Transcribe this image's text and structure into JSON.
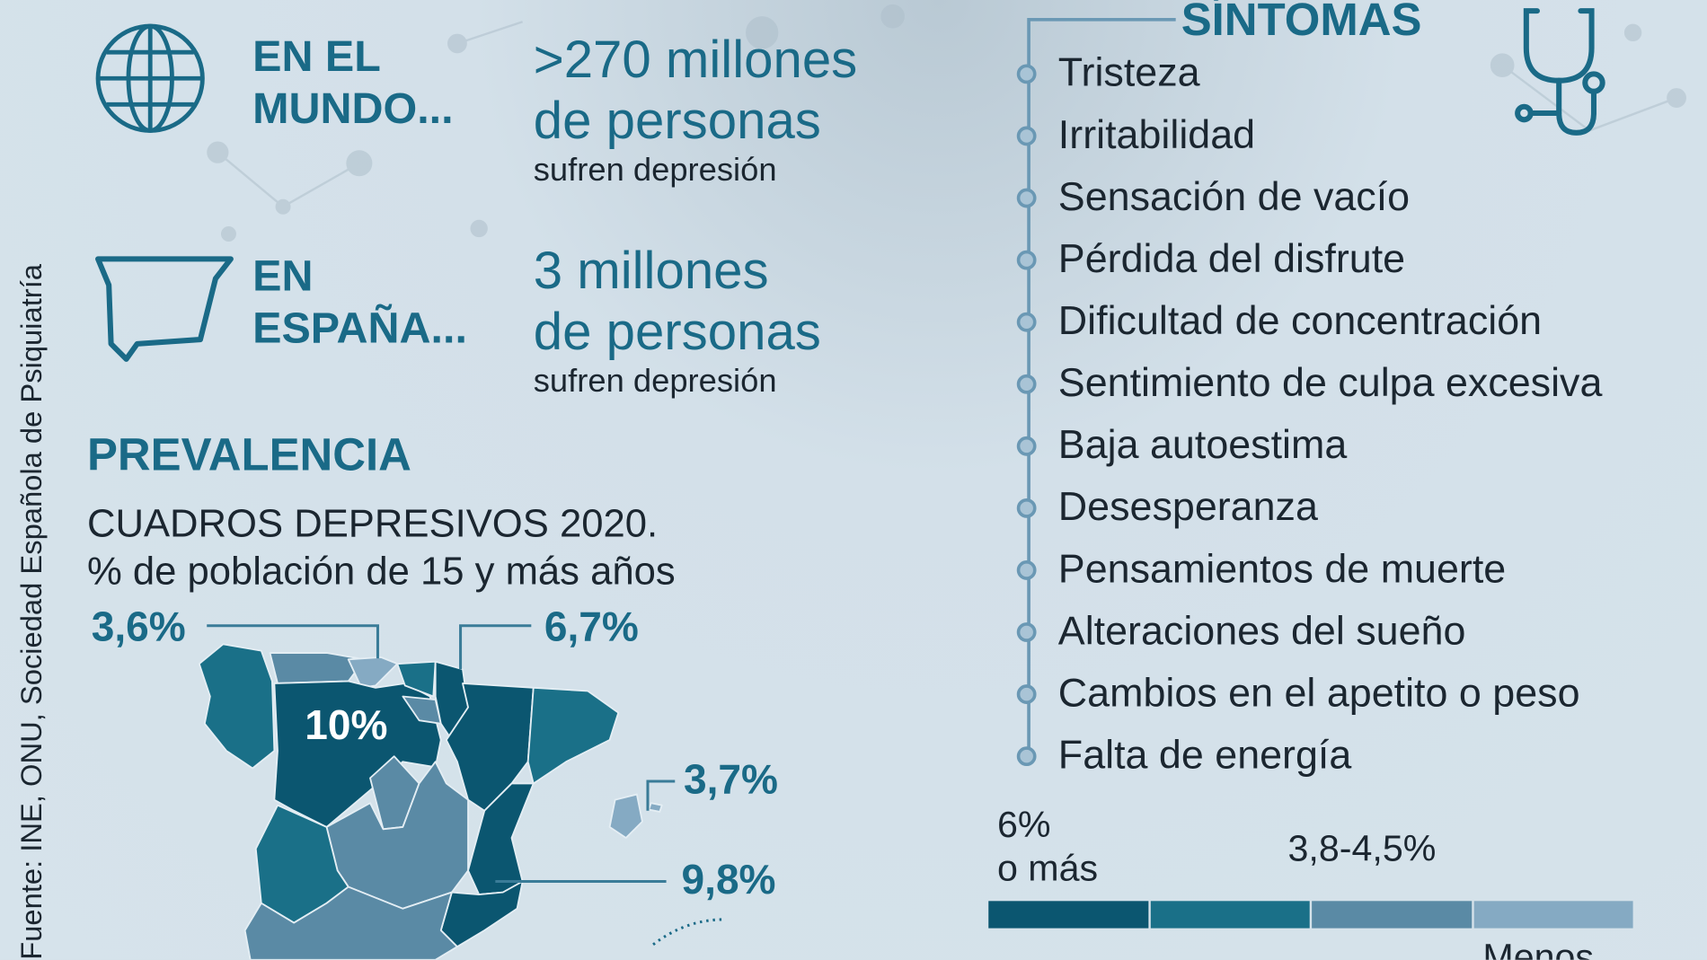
{
  "world": {
    "label_line1": "EN EL",
    "label_line2": "MUNDO...",
    "value_line1": ">270 millones",
    "value_line2": "de personas",
    "note": "sufren depresión",
    "icon": "globe-icon"
  },
  "spain": {
    "label_line1": "EN",
    "label_line2": "ESPAÑA...",
    "value_line1": "3 millones",
    "value_line2": "de personas",
    "note": "sufren depresión",
    "icon": "spain-outline-icon"
  },
  "prevalence": {
    "heading": "PREVALENCIA",
    "subtitle": "CUADROS DEPRESIVOS 2020.",
    "unit": "% de población de 15 y más años"
  },
  "map_labels": {
    "asturias_cantabria": "3,6%",
    "navarra": "6,7%",
    "castilla_leon": "10%",
    "baleares": "3,7%",
    "valencia": "9,8%"
  },
  "symptoms": {
    "heading": "SÍNTOMAS",
    "icon": "stethoscope-icon",
    "items": [
      "Tristeza",
      "Irritabilidad",
      "Sensación de vacío",
      "Pérdida del disfrute",
      "Dificultad de concentración",
      "Sentimiento de culpa excesiva",
      "Baja autoestima",
      "Desesperanza",
      "Pensamientos de muerte",
      "Alteraciones del sueño",
      "Cambios en el apetito o peso",
      "Falta de energía"
    ]
  },
  "legend": {
    "high_line1": "6%",
    "high_line2": "o más",
    "mid": "3,8-4,5%",
    "low": "Menos",
    "colors": [
      "#0b5670",
      "#1a7088",
      "#5a8aa5",
      "#85aac3"
    ]
  },
  "source": "Fuente: INE, ONU, Sociedad Española de Psiquiatría"
}
